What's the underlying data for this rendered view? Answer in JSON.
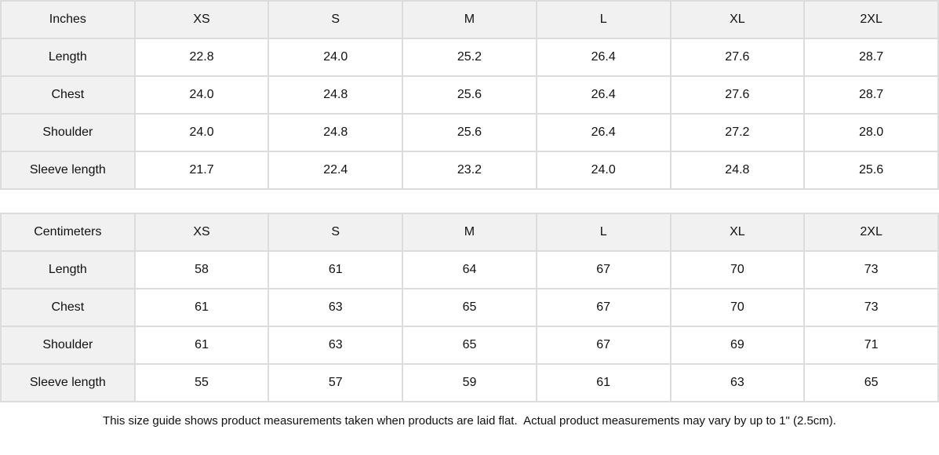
{
  "tables": [
    {
      "unit_label": "Inches",
      "sizes": [
        "XS",
        "S",
        "M",
        "L",
        "XL",
        "2XL"
      ],
      "rows": [
        {
          "label": "Length",
          "values": [
            "22.8",
            "24.0",
            "25.2",
            "26.4",
            "27.6",
            "28.7"
          ]
        },
        {
          "label": "Chest",
          "values": [
            "24.0",
            "24.8",
            "25.6",
            "26.4",
            "27.6",
            "28.7"
          ]
        },
        {
          "label": "Shoulder",
          "values": [
            "24.0",
            "24.8",
            "25.6",
            "26.4",
            "27.2",
            "28.0"
          ]
        },
        {
          "label": "Sleeve length",
          "values": [
            "21.7",
            "22.4",
            "23.2",
            "24.0",
            "24.8",
            "25.6"
          ]
        }
      ]
    },
    {
      "unit_label": "Centimeters",
      "sizes": [
        "XS",
        "S",
        "M",
        "L",
        "XL",
        "2XL"
      ],
      "rows": [
        {
          "label": "Length",
          "values": [
            "58",
            "61",
            "64",
            "67",
            "70",
            "73"
          ]
        },
        {
          "label": "Chest",
          "values": [
            "61",
            "63",
            "65",
            "67",
            "70",
            "73"
          ]
        },
        {
          "label": "Shoulder",
          "values": [
            "61",
            "63",
            "65",
            "67",
            "69",
            "71"
          ]
        },
        {
          "label": "Sleeve length",
          "values": [
            "55",
            "57",
            "59",
            "61",
            "63",
            "65"
          ]
        }
      ]
    }
  ],
  "footer_note": "This size guide shows product measurements taken when products are laid flat.  Actual product measurements may vary by up to 1\" (2.5cm).",
  "colors": {
    "shaded_cell_bg": "#f1f1f1",
    "border": "#dcdcdc",
    "cell_bg": "#ffffff",
    "text": "#111111"
  }
}
